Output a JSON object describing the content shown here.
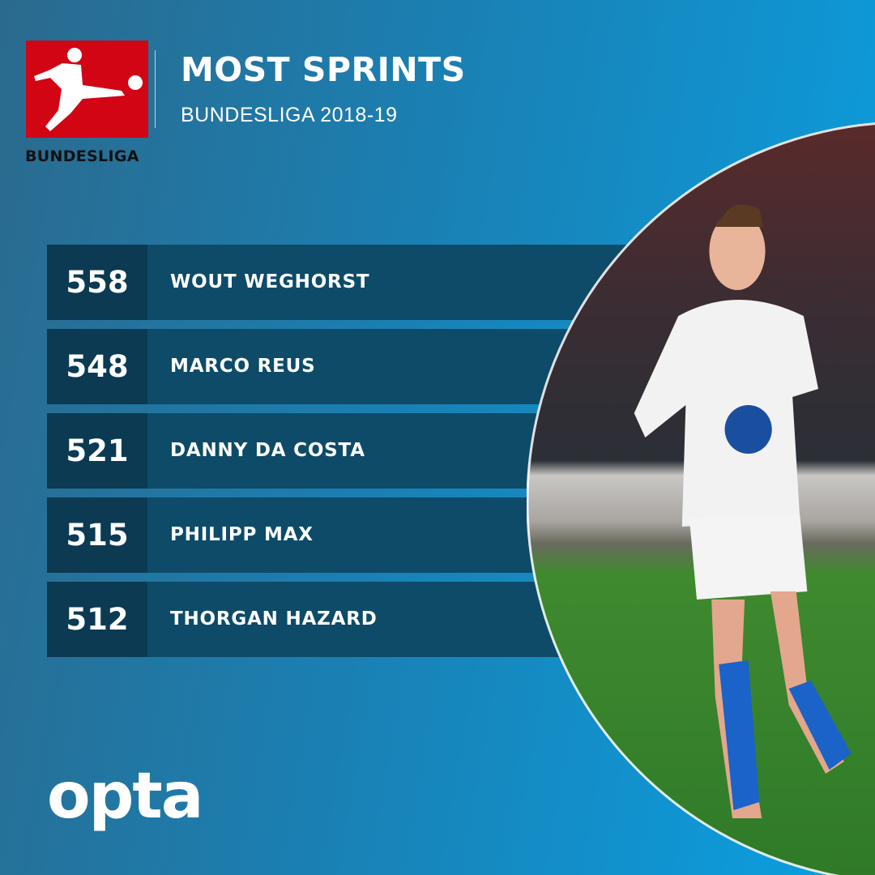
{
  "header": {
    "title": "MOST SPRINTS",
    "subtitle": "BUNDESLIGA 2018-19",
    "logo_text": "BUNDESLIGA"
  },
  "colors": {
    "logo_red": "#d20515",
    "row_name_bg": "#0d4b69",
    "row_number_bg": "#0b3a52"
  },
  "rankings": [
    {
      "value": "558",
      "name": "WOUT WEGHORST"
    },
    {
      "value": "548",
      "name": "MARCO REUS"
    },
    {
      "value": "521",
      "name": "DANNY DA COSTA"
    },
    {
      "value": "515",
      "name": "PHILIPP MAX"
    },
    {
      "value": "512",
      "name": "THORGAN HAZARD"
    }
  ],
  "footer": {
    "brand": "opta"
  }
}
